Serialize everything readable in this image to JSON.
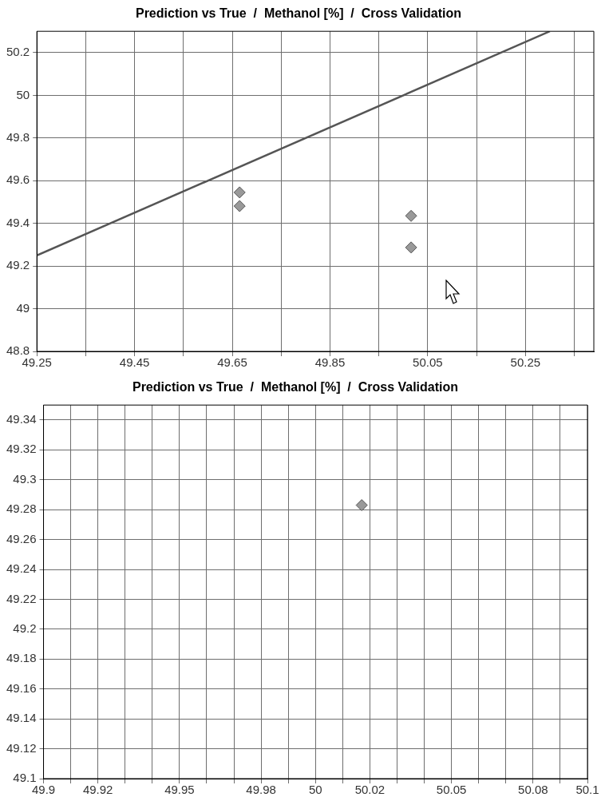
{
  "chart_data": [
    {
      "type": "scatter",
      "title": "Prediction vs True  /  Methanol [%]  /  Cross Validation",
      "xlim": [
        49.25,
        50.39
      ],
      "ylim": [
        48.8,
        50.3
      ],
      "xticks": [
        49.25,
        {
          "value": 49.35,
          "label": null
        },
        49.45,
        {
          "value": 49.55,
          "label": null
        },
        49.65,
        {
          "value": 49.75,
          "label": null
        },
        49.85,
        {
          "value": 49.95,
          "label": null
        },
        50.05,
        {
          "value": 50.15,
          "label": null
        },
        50.25,
        {
          "value": 50.35,
          "label": null
        }
      ],
      "yticks": [
        48.8,
        49,
        49.2,
        49.4,
        49.6,
        49.8,
        50,
        50.2
      ],
      "grid": true,
      "marker": "diamond",
      "series": [
        {
          "type": "line",
          "color": "#555555",
          "x": [
            49.25,
            50.3
          ],
          "values": [
            49.25,
            50.3
          ],
          "marker": "none"
        },
        {
          "type": "scatter",
          "color": "#999999",
          "x": [
            49.665,
            49.665,
            50.016,
            50.016
          ],
          "values": [
            49.545,
            49.481,
            49.435,
            49.287
          ]
        }
      ]
    },
    {
      "type": "scatter",
      "title": "Prediction vs True  /  Methanol [%]  /  Cross Validation",
      "xlim": [
        49.9,
        50.1
      ],
      "ylim": [
        49.1,
        49.35
      ],
      "xticks": [
        49.9,
        {
          "value": 49.91,
          "label": null
        },
        49.92,
        {
          "value": 49.93,
          "label": null
        },
        {
          "value": 49.94,
          "label": null
        },
        49.95,
        {
          "value": 49.96,
          "label": null
        },
        {
          "value": 49.97,
          "label": null
        },
        49.98,
        {
          "value": 49.99,
          "label": null
        },
        50,
        {
          "value": 50.01,
          "label": null
        },
        50.02,
        {
          "value": 50.03,
          "label": null
        },
        {
          "value": 50.04,
          "label": null
        },
        50.05,
        {
          "value": 50.06,
          "label": null
        },
        {
          "value": 50.07,
          "label": null
        },
        50.08,
        {
          "value": 50.09,
          "label": null
        },
        50.1
      ],
      "yticks": [
        49.1,
        49.12,
        49.14,
        49.16,
        49.18,
        49.2,
        49.22,
        49.24,
        49.26,
        49.28,
        49.3,
        49.32,
        49.34
      ],
      "grid": true,
      "marker": "diamond",
      "series": [
        {
          "type": "scatter",
          "color": "#999999",
          "x": [
            50.017
          ],
          "values": [
            49.283
          ]
        }
      ]
    }
  ]
}
